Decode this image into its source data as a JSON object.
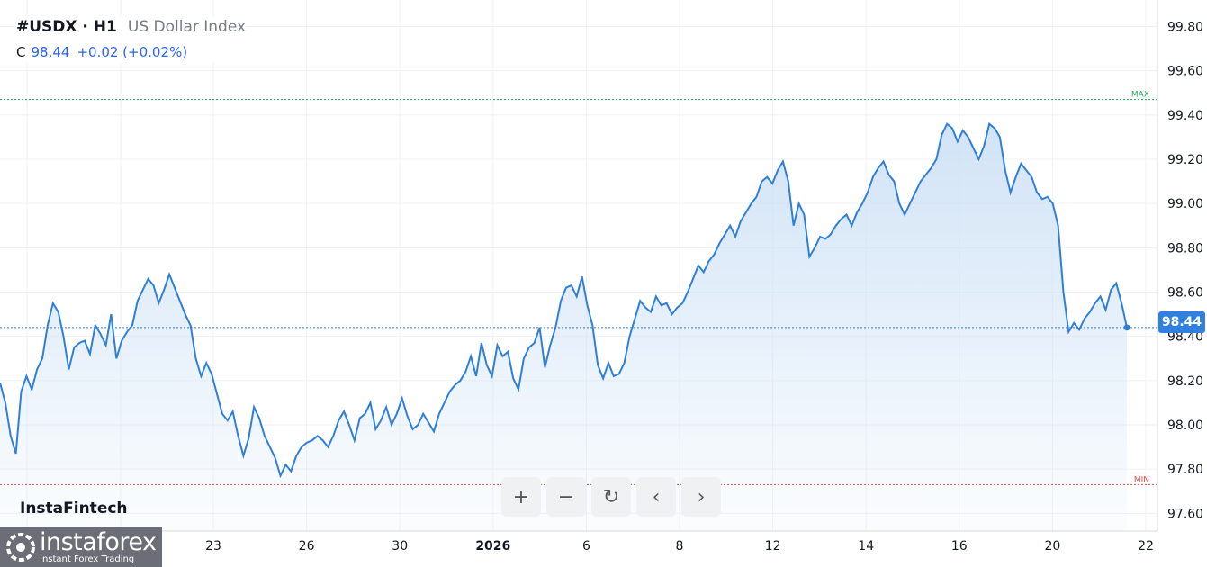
{
  "header": {
    "symbol": "#USDX · H1",
    "name": "US Dollar Index",
    "c_label": "C",
    "c_value": "98.44",
    "change": "+0.02 (+0.02%)"
  },
  "brand": "InstaFintech",
  "logo": {
    "main": "instaforex",
    "sub": "Instant Forex Trading"
  },
  "toolbar": {
    "zoom_in": "+",
    "zoom_out": "−",
    "reset": "↻",
    "prev": "‹",
    "next": "›"
  },
  "price_tag": "98.44",
  "colors": {
    "line": "#2f7fd8",
    "fill": "#cfe2f6",
    "max_line": "#26a65b",
    "min_line": "#e05252",
    "price_line": "#2f80e0"
  },
  "chart_data": {
    "type": "area",
    "ylim": [
      97.52,
      99.92
    ],
    "yticks": [
      "99.80",
      "99.60",
      "99.40",
      "99.20",
      "99.00",
      "98.80",
      "98.60",
      "98.40",
      "98.20",
      "98.00",
      "97.80",
      "97.60"
    ],
    "xticks": [
      "23",
      "26",
      "30",
      "2026",
      "6",
      "8",
      "12",
      "14",
      "16",
      "20",
      "22"
    ],
    "max_label": "MAX",
    "min_label": "MIN",
    "max_value": 99.47,
    "min_value": 97.73,
    "last_value": 98.44,
    "values": [
      98.19,
      98.1,
      97.95,
      97.87,
      98.15,
      98.22,
      98.16,
      98.25,
      98.3,
      98.45,
      98.55,
      98.51,
      98.4,
      98.25,
      98.35,
      98.37,
      98.38,
      98.32,
      98.45,
      98.41,
      98.36,
      98.5,
      98.3,
      98.38,
      98.42,
      98.45,
      98.56,
      98.61,
      98.66,
      98.63,
      98.55,
      98.61,
      98.68,
      98.62,
      98.56,
      98.5,
      98.45,
      98.3,
      98.22,
      98.28,
      98.23,
      98.14,
      98.05,
      98.02,
      98.06,
      97.95,
      97.86,
      97.94,
      98.08,
      98.03,
      97.95,
      97.9,
      97.85,
      97.77,
      97.82,
      97.79,
      97.86,
      97.9,
      97.92,
      97.93,
      97.95,
      97.93,
      97.9,
      97.95,
      98.02,
      98.06,
      98.0,
      97.93,
      98.03,
      98.05,
      98.1,
      97.98,
      98.02,
      98.08,
      98.0,
      98.05,
      98.12,
      98.04,
      97.98,
      98.0,
      98.05,
      98.01,
      97.97,
      98.05,
      98.1,
      98.15,
      98.18,
      98.2,
      98.24,
      98.31,
      98.22,
      98.37,
      98.27,
      98.22,
      98.36,
      98.31,
      98.33,
      98.21,
      98.16,
      98.3,
      98.35,
      98.37,
      98.44,
      98.26,
      98.36,
      98.44,
      98.56,
      98.62,
      98.63,
      98.58,
      98.67,
      98.54,
      98.45,
      98.27,
      98.21,
      98.28,
      98.22,
      98.23,
      98.28,
      98.4,
      98.48,
      98.56,
      98.53,
      98.51,
      98.58,
      98.54,
      98.55,
      98.5,
      98.53,
      98.55,
      98.6,
      98.66,
      98.72,
      98.69,
      98.74,
      98.77,
      98.82,
      98.86,
      98.9,
      98.85,
      98.92,
      98.96,
      99.0,
      99.03,
      99.1,
      99.12,
      99.09,
      99.15,
      99.19,
      99.1,
      98.9,
      99.0,
      98.95,
      98.76,
      98.8,
      98.85,
      98.84,
      98.86,
      98.9,
      98.93,
      98.95,
      98.9,
      98.96,
      99.0,
      99.05,
      99.12,
      99.16,
      99.19,
      99.13,
      99.1,
      99.0,
      98.95,
      99.0,
      99.05,
      99.1,
      99.13,
      99.16,
      99.2,
      99.31,
      99.36,
      99.34,
      99.28,
      99.33,
      99.3,
      99.25,
      99.2,
      99.26,
      99.36,
      99.34,
      99.3,
      99.15,
      99.05,
      99.12,
      99.18,
      99.15,
      99.12,
      99.05,
      99.02,
      99.03,
      99.0,
      98.9,
      98.6,
      98.42,
      98.46,
      98.43,
      98.48,
      98.51,
      98.55,
      98.58,
      98.52,
      98.61,
      98.64,
      98.55,
      98.44
    ],
    "price_label": "98.44"
  }
}
